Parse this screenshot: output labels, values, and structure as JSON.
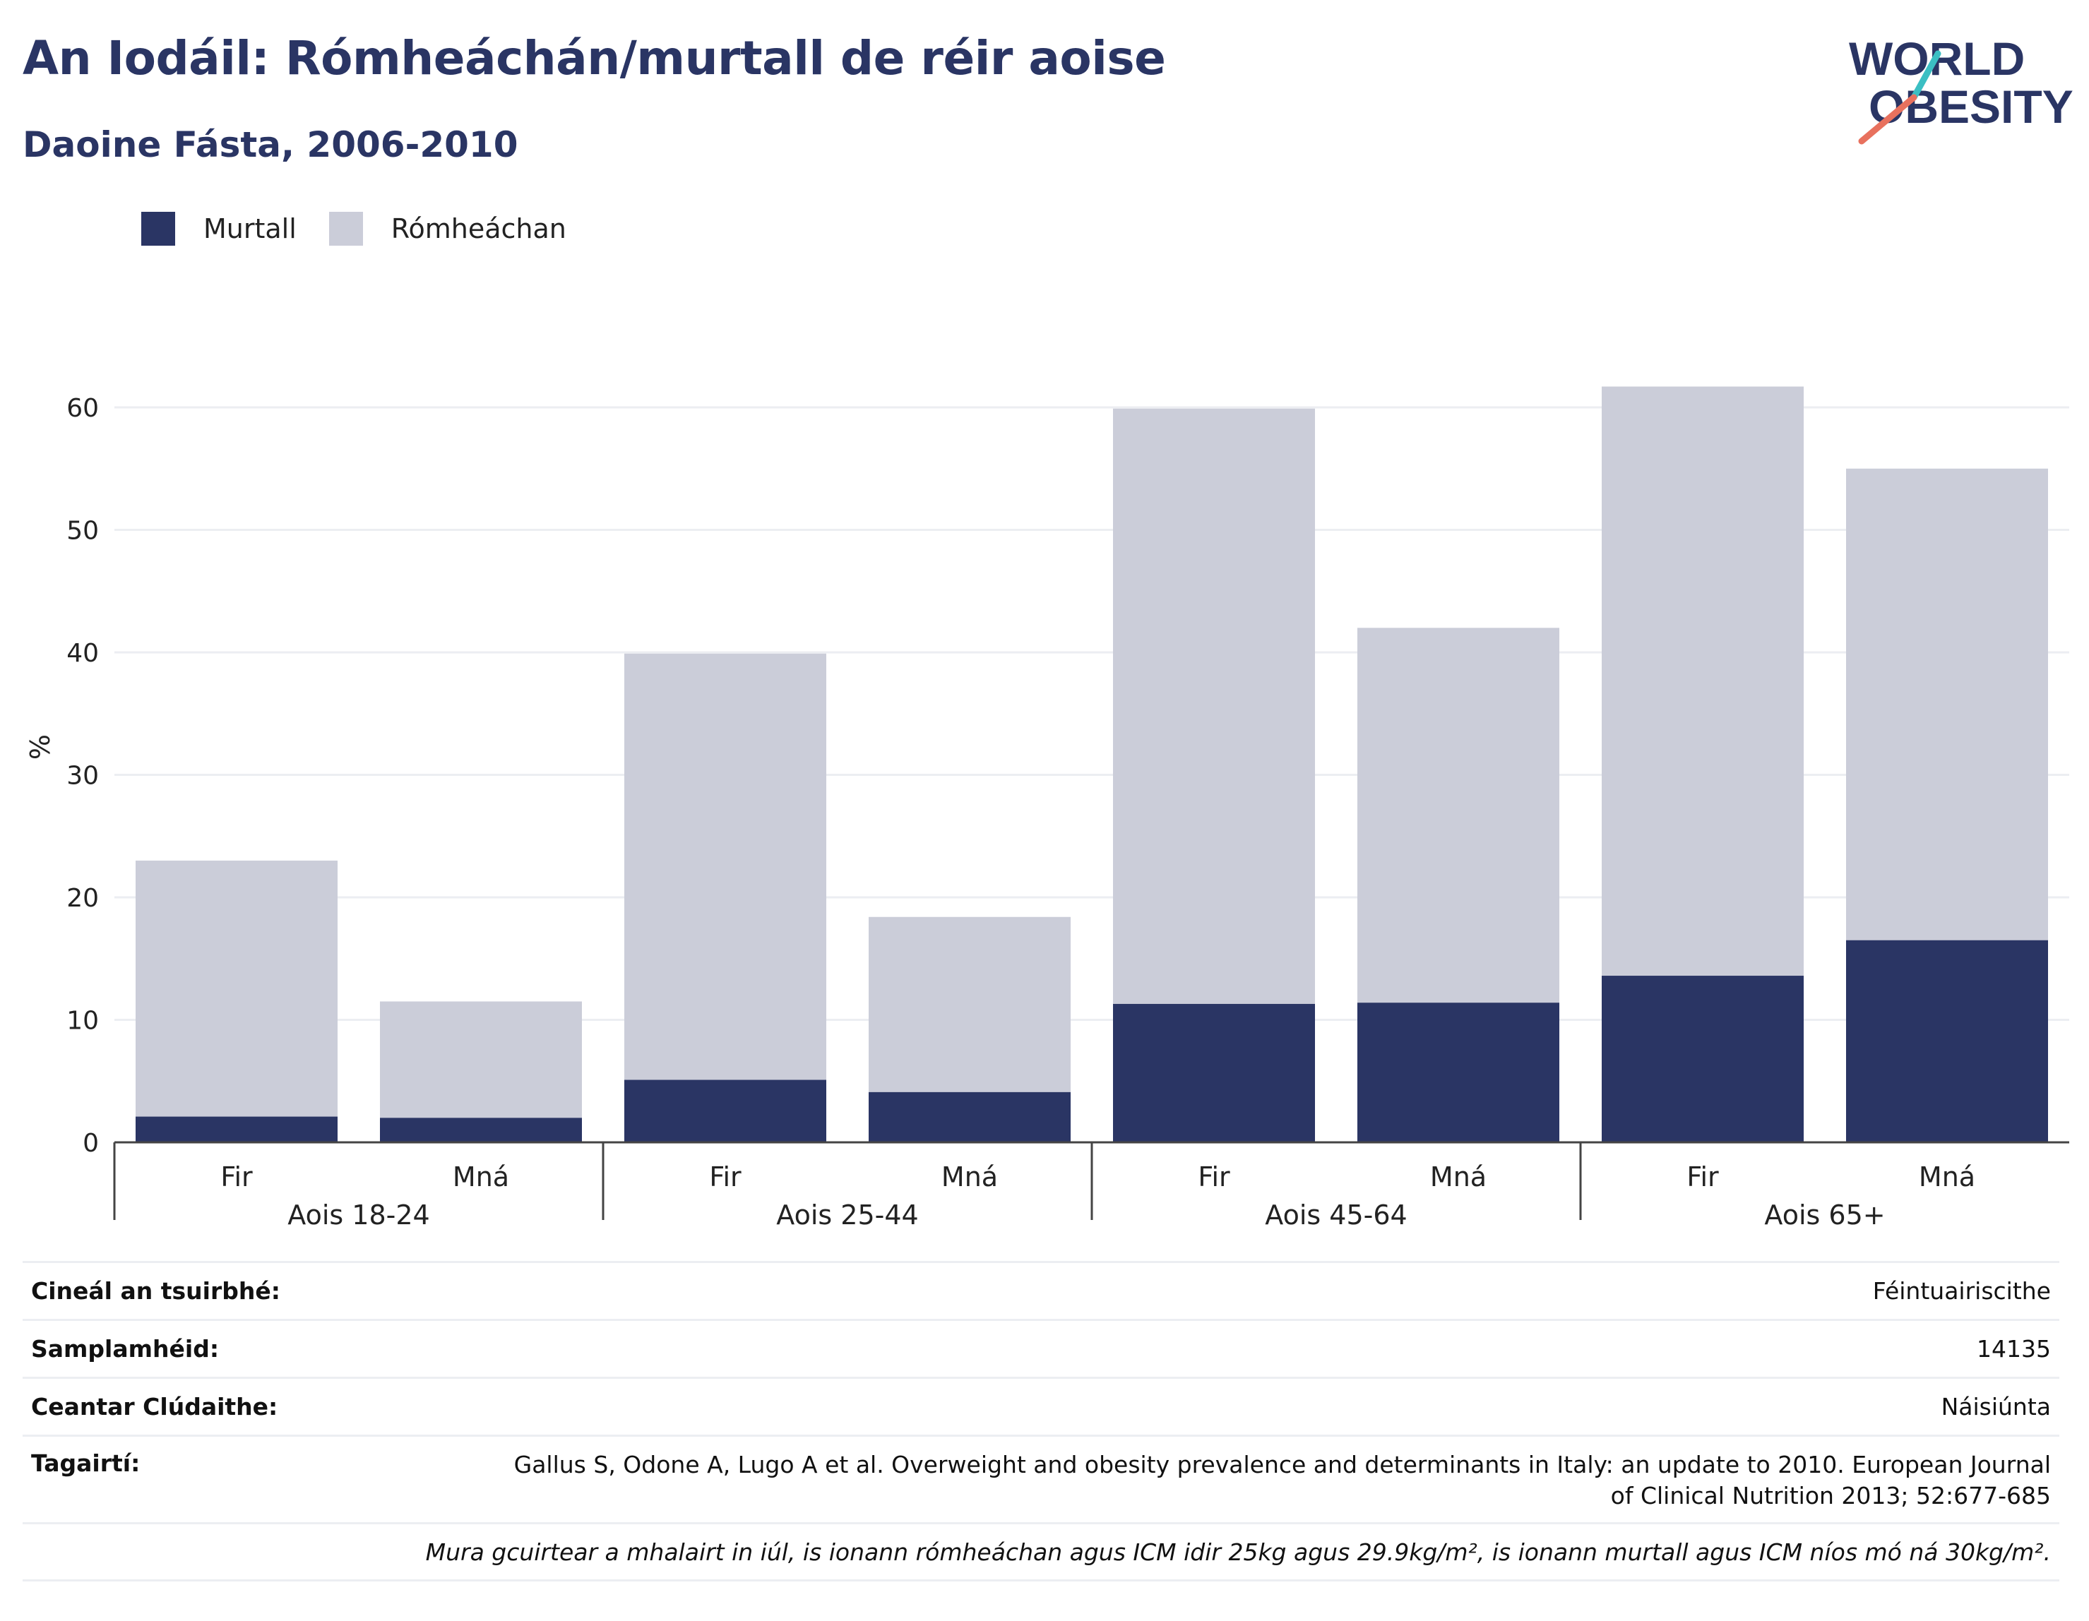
{
  "header": {
    "title": "An Iodáil: Rómheáchán/murtall de réir aoise",
    "subtitle": "Daoine Fásta, 2006-2010"
  },
  "logo": {
    "line1": "WORLD",
    "line2": "OBESITY"
  },
  "colors": {
    "obese": "#2a3564",
    "overweight": "#cbcdd9",
    "grid": "#eceef2",
    "axis": "#444444",
    "text": "#222222",
    "accent_teal": "#3bbfc3",
    "accent_coral": "#e8715e"
  },
  "chart_data": {
    "type": "bar",
    "stacked": true,
    "title": "An Iodáil: Rómheáchán/murtall de réir aoise",
    "subtitle": "Daoine Fásta, 2006-2010",
    "ylabel": "%",
    "ylim": [
      0,
      66
    ],
    "yticks": [
      0,
      10,
      20,
      30,
      40,
      50,
      60
    ],
    "grid": true,
    "legend_position": "top-left",
    "groups": [
      "Aois 18-24",
      "Aois 25-44",
      "Aois 45-64",
      "Aois 65+"
    ],
    "categories": [
      "Fir",
      "Mná",
      "Fir",
      "Mná",
      "Fir",
      "Mná",
      "Fir",
      "Mná"
    ],
    "series": [
      {
        "name": "Murtall",
        "values": [
          2.1,
          2.0,
          5.1,
          4.1,
          11.3,
          11.4,
          13.6,
          16.5
        ]
      },
      {
        "name": "Rómheáchan",
        "values": [
          20.9,
          9.5,
          34.8,
          14.3,
          48.6,
          30.6,
          48.1,
          38.5
        ]
      }
    ]
  },
  "info": {
    "rows": [
      {
        "label": "Cineál an tsuirbhé:",
        "value": "Féintuairiscithe"
      },
      {
        "label": "Samplamhéid:",
        "value": "14135"
      },
      {
        "label": "Ceantar Clúdaithe:",
        "value": "Náisiúnta"
      },
      {
        "label": "Tagairtí:",
        "value": "Gallus S, Odone A, Lugo A et al. Overweight and obesity prevalence and determinants in Italy: an update to 2010. European Journal of Clinical Nutrition 2013; 52:677-685"
      }
    ],
    "note": "Mura gcuirtear a mhalairt in iúl, is ionann rómheáchan agus ICM idir 25kg agus 29.9kg/m², is ionann murtall agus ICM níos mó ná 30kg/m²."
  }
}
